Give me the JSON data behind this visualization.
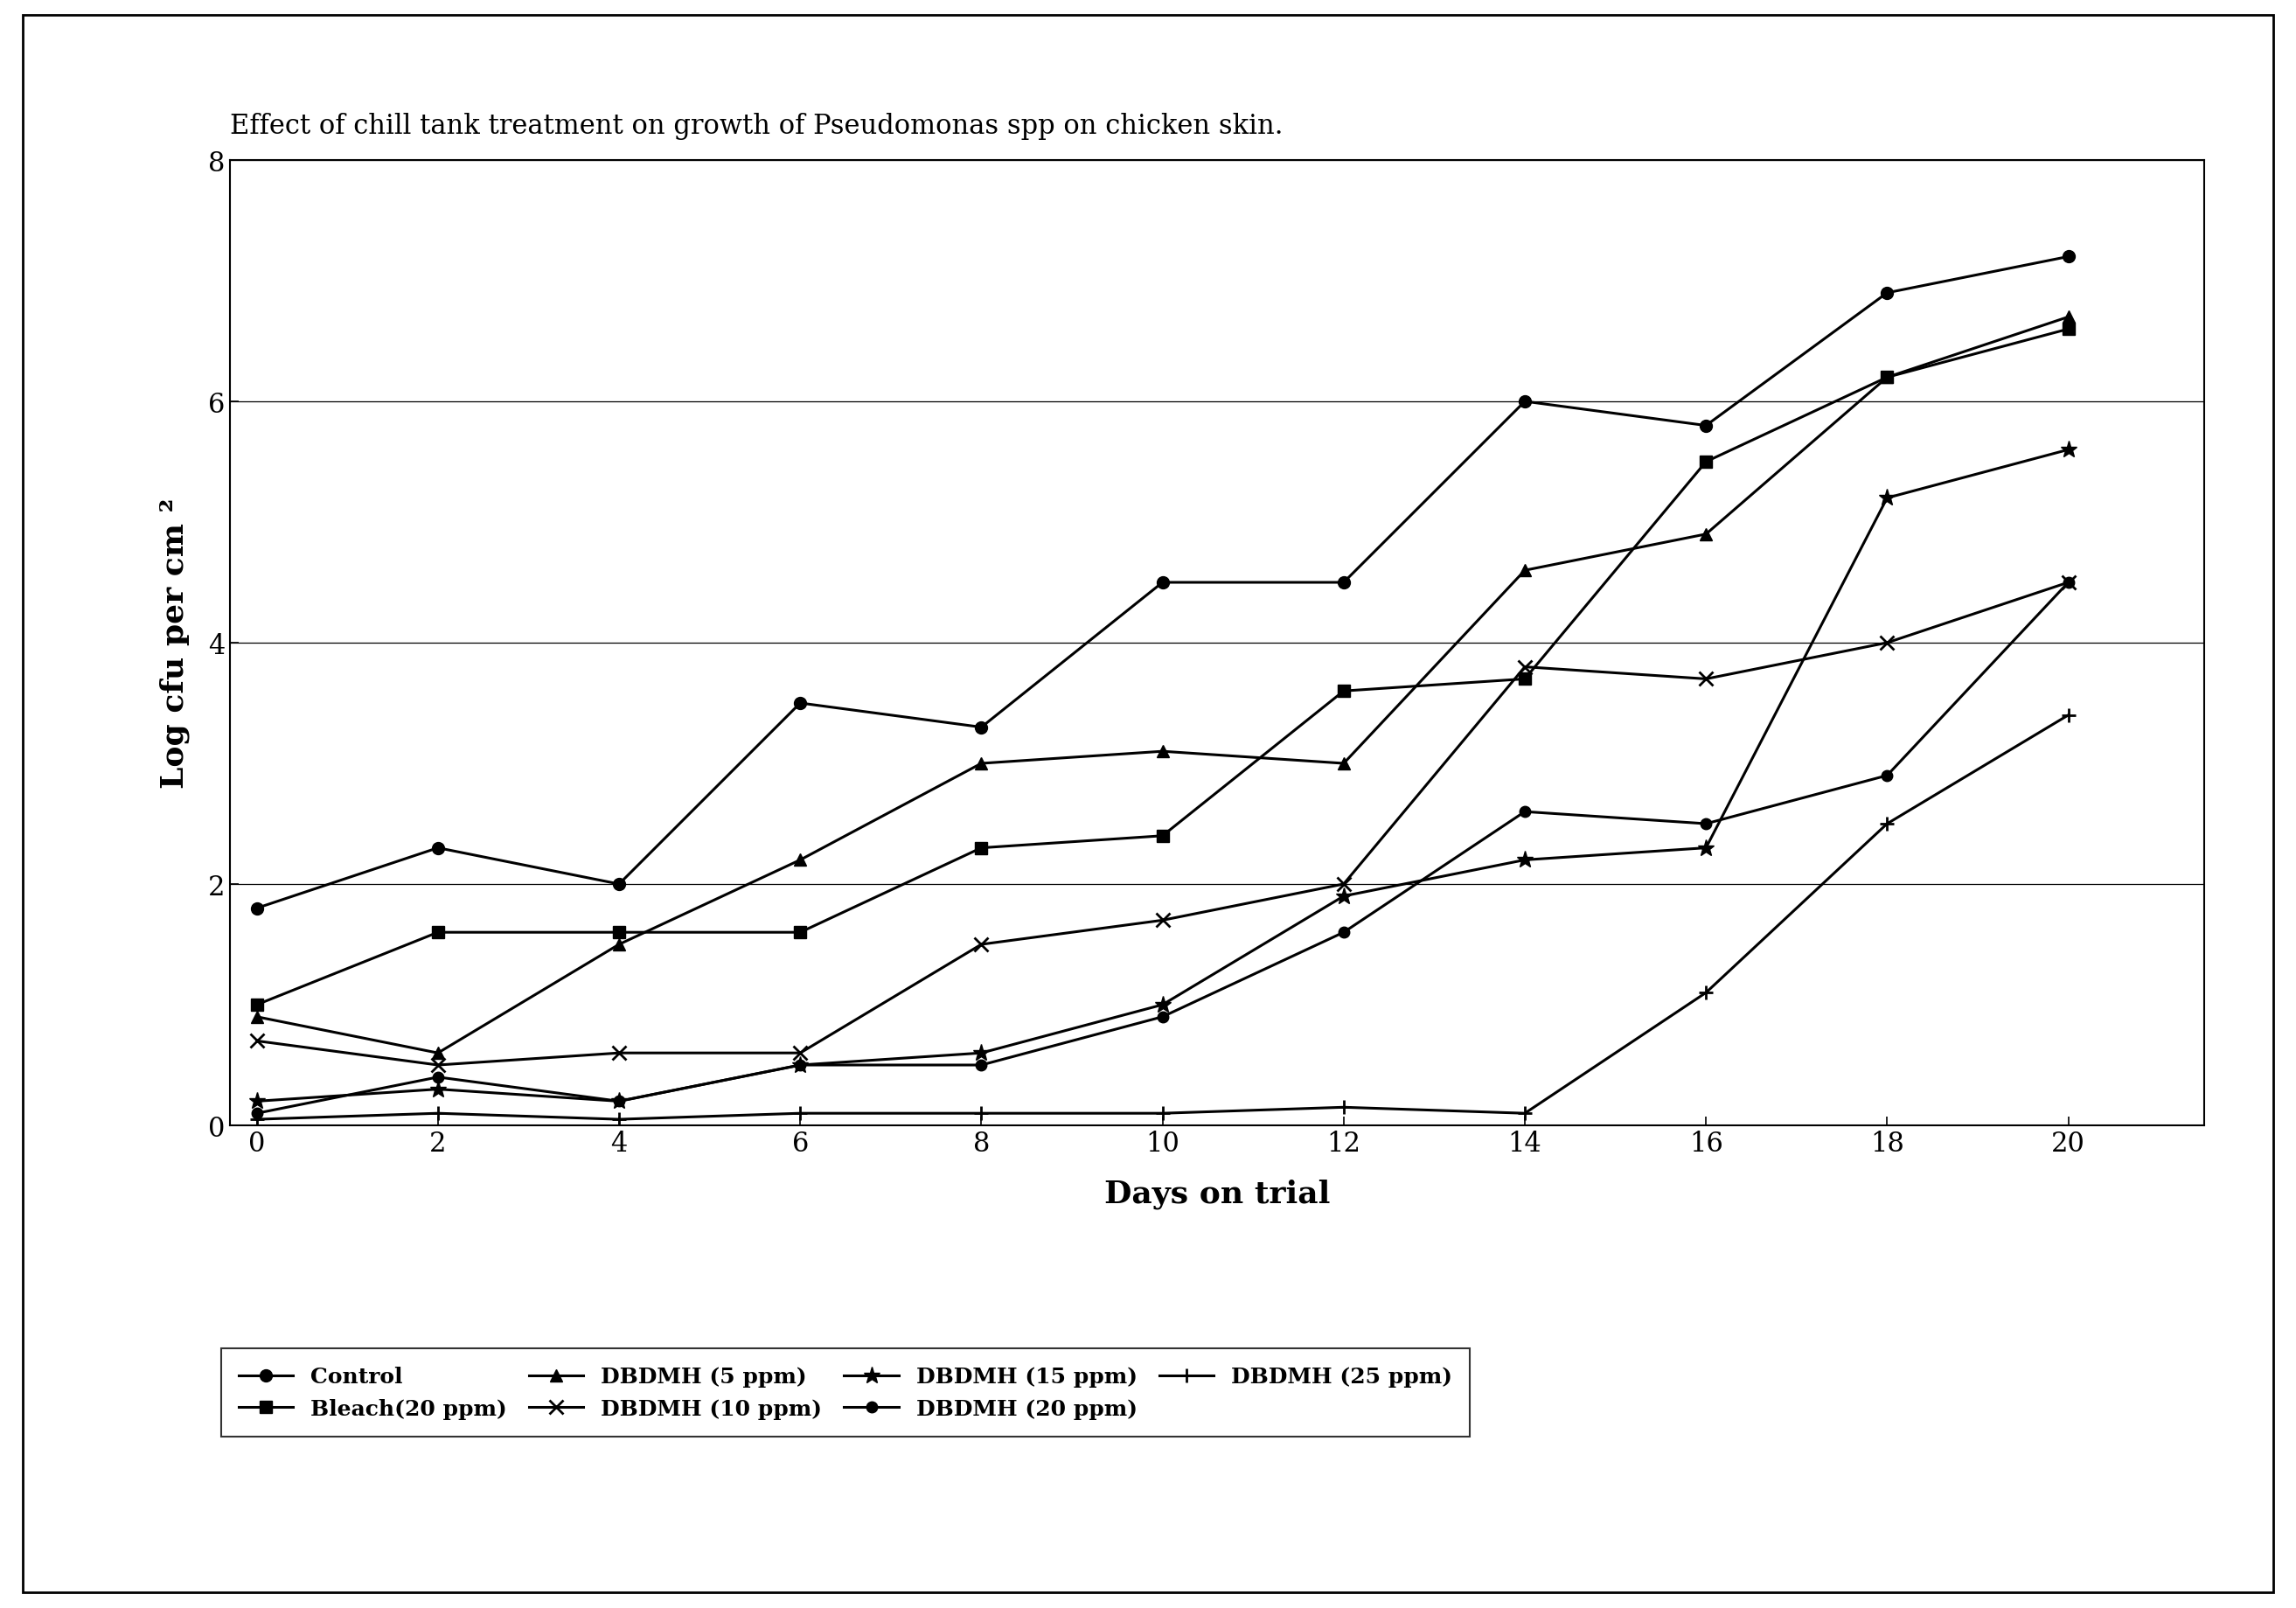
{
  "title": "Effect of chill tank treatment on growth of Pseudomonas spp on chicken skin.",
  "xlabel": "Days on trial",
  "ylabel": "Log cfu per cm ²",
  "x": [
    0,
    2,
    4,
    6,
    8,
    10,
    12,
    14,
    16,
    18,
    20
  ],
  "series": [
    {
      "label": "Control",
      "marker": "o",
      "values": [
        1.8,
        2.3,
        2.0,
        3.5,
        3.3,
        4.5,
        4.5,
        6.0,
        5.8,
        6.9,
        7.2
      ]
    },
    {
      "label": "Bleach(20 ppm)",
      "marker": "s",
      "values": [
        1.0,
        1.6,
        1.6,
        1.6,
        2.3,
        2.4,
        3.6,
        3.7,
        5.5,
        6.2,
        6.6
      ]
    },
    {
      "label": "DBDMH (5 ppm)",
      "marker": "^",
      "values": [
        0.9,
        0.6,
        1.5,
        2.2,
        3.0,
        3.1,
        3.0,
        4.6,
        4.9,
        6.2,
        6.7
      ]
    },
    {
      "label": "DBDMH (10 ppm)",
      "marker": "x",
      "values": [
        0.7,
        0.5,
        0.6,
        0.6,
        1.5,
        1.7,
        2.0,
        3.8,
        3.7,
        4.0,
        4.5
      ]
    },
    {
      "label": "DBDMH (15 ppm)",
      "marker": "*",
      "values": [
        0.2,
        0.3,
        0.2,
        0.5,
        0.6,
        1.0,
        1.9,
        2.2,
        2.3,
        5.2,
        5.6
      ]
    },
    {
      "label": "DBDMH (20 ppm)",
      "marker": "o",
      "values": [
        0.1,
        0.4,
        0.2,
        0.5,
        0.5,
        0.9,
        1.6,
        2.6,
        2.5,
        2.9,
        4.5
      ]
    },
    {
      "label": "DBDMH (25 ppm)",
      "marker": "+",
      "values": [
        0.05,
        0.1,
        0.05,
        0.1,
        0.1,
        0.1,
        0.15,
        0.1,
        1.1,
        2.5,
        3.4
      ]
    }
  ],
  "ylim": [
    0,
    8
  ],
  "yticks": [
    0,
    2,
    4,
    6,
    8
  ],
  "xticks": [
    0,
    2,
    4,
    6,
    8,
    10,
    12,
    14,
    16,
    18,
    20
  ],
  "title_fontsize": 22,
  "axis_label_fontsize": 26,
  "tick_fontsize": 22,
  "legend_fontsize": 18,
  "line_color": "#000000",
  "background_color": "#ffffff",
  "linewidth": 2.2,
  "markersize": 10
}
